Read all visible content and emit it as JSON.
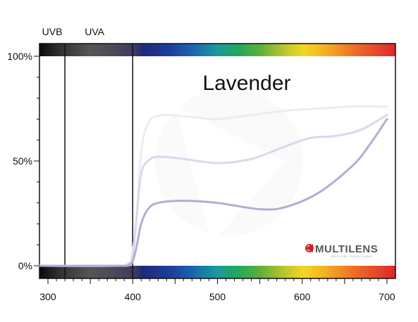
{
  "chart_data": {
    "type": "line",
    "title": "Lavender",
    "xlabel": "",
    "ylabel": "",
    "xlim": [
      290,
      710
    ],
    "ylim": [
      0,
      100
    ],
    "x_ticks": [
      300,
      400,
      500,
      600,
      700
    ],
    "x_tick_labels": [
      "300",
      "400",
      "500",
      "600",
      "700"
    ],
    "y_ticks": [
      0,
      50,
      100
    ],
    "y_tick_labels": [
      "0%",
      "50%",
      "100%"
    ],
    "band_labels": [
      {
        "text": "UVB",
        "x": 305
      },
      {
        "text": "UVA",
        "x": 355
      }
    ],
    "band_dividers": [
      320,
      400
    ],
    "grid": false,
    "series": [
      {
        "color": "#eeeaf6",
        "stroke_width": 3,
        "points": [
          [
            290,
            0
          ],
          [
            380,
            0
          ],
          [
            392,
            0.5
          ],
          [
            398,
            3
          ],
          [
            404,
            20
          ],
          [
            408,
            45
          ],
          [
            412,
            60
          ],
          [
            418,
            68
          ],
          [
            425,
            71
          ],
          [
            440,
            72
          ],
          [
            470,
            71
          ],
          [
            500,
            70
          ],
          [
            540,
            72
          ],
          [
            580,
            74
          ],
          [
            620,
            75
          ],
          [
            660,
            76
          ],
          [
            700,
            76
          ]
        ]
      },
      {
        "color": "#ddd6ec",
        "stroke_width": 3,
        "points": [
          [
            290,
            0
          ],
          [
            385,
            0
          ],
          [
            395,
            1
          ],
          [
            400,
            5
          ],
          [
            405,
            25
          ],
          [
            410,
            44
          ],
          [
            418,
            50
          ],
          [
            430,
            52
          ],
          [
            460,
            51
          ],
          [
            500,
            49
          ],
          [
            540,
            51
          ],
          [
            580,
            57
          ],
          [
            610,
            61
          ],
          [
            640,
            62
          ],
          [
            670,
            65
          ],
          [
            700,
            72
          ]
        ]
      },
      {
        "color": "#b6abd4",
        "stroke_width": 3,
        "points": [
          [
            290,
            0
          ],
          [
            385,
            0
          ],
          [
            395,
            0.5
          ],
          [
            400,
            2
          ],
          [
            405,
            10
          ],
          [
            410,
            20
          ],
          [
            418,
            27
          ],
          [
            430,
            30
          ],
          [
            460,
            31
          ],
          [
            500,
            30
          ],
          [
            550,
            27
          ],
          [
            580,
            28
          ],
          [
            620,
            35
          ],
          [
            660,
            48
          ],
          [
            680,
            58
          ],
          [
            700,
            70
          ]
        ]
      }
    ],
    "logo_text": "MULTILENS",
    "logo_subtext": "OPTICAL SOLUTIONS"
  }
}
